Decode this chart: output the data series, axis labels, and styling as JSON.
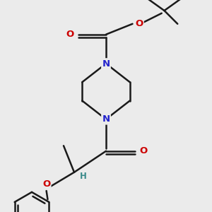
{
  "bg_color": "#ebebeb",
  "bond_color": "#1a1a1a",
  "N_color": "#2323cc",
  "O_color": "#cc0000",
  "H_color": "#3a8a8a",
  "bond_width": 1.8,
  "fig_width": 3.0,
  "fig_height": 3.0,
  "dpi": 100,
  "xlim": [
    -2.5,
    4.5
  ],
  "ylim": [
    -4.0,
    4.0
  ]
}
